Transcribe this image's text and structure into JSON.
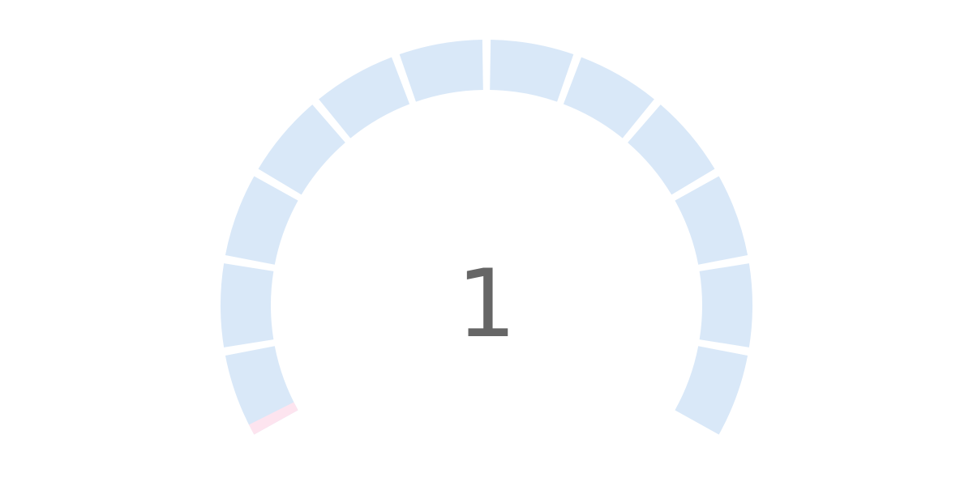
{
  "chart_data": {
    "type": "gauge",
    "value": 1,
    "min": 0,
    "max": 100,
    "value_label": "1",
    "segment_count": 12,
    "start_angle_deg": -120,
    "end_angle_deg": 120,
    "track_color": "#d9e8f8",
    "fill_color": "#fde4ef"
  }
}
